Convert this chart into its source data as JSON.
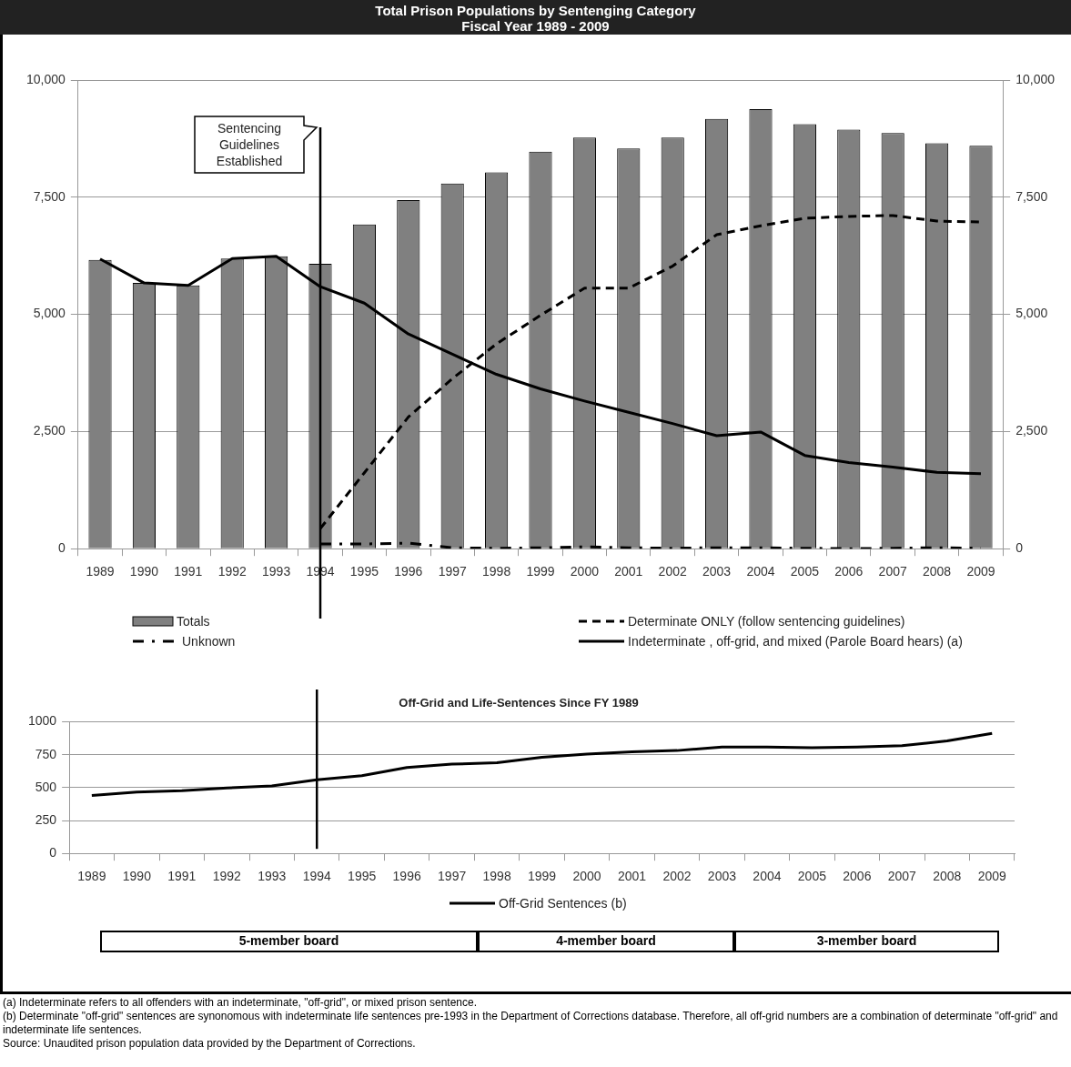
{
  "chart_data": [
    {
      "type": "bar",
      "title": "Total Prison Populations by Sentenging Category",
      "subtitle": "Fiscal Year 1989 - 2009",
      "categories": [
        "1989",
        "1990",
        "1991",
        "1992",
        "1993",
        "1994",
        "1995",
        "1996",
        "1997",
        "1998",
        "1999",
        "2000",
        "2001",
        "2002",
        "2003",
        "2004",
        "2005",
        "2006",
        "2007",
        "2008",
        "2009"
      ],
      "series": [
        {
          "name": "Totals",
          "color": "#808080",
          "values": [
            6160,
            5670,
            5620,
            6190,
            6240,
            6080,
            6920,
            7440,
            7790,
            8030,
            8470,
            8770,
            8540,
            8770,
            9170,
            9380,
            9060,
            8940,
            8870,
            8650,
            8600
          ]
        },
        {
          "name": "Determinate ONLY (follow sentencing guidelines)",
          "type": "line",
          "line_style": "dashed",
          "color": "#000000",
          "values": [
            null,
            null,
            null,
            null,
            null,
            430,
            1620,
            2810,
            3630,
            4370,
            4980,
            5560,
            5560,
            6030,
            6700,
            6890,
            7050,
            7090,
            7110,
            6990,
            6970
          ]
        },
        {
          "name": "Unknown",
          "type": "line",
          "line_style": "dashdot",
          "color": "#000000",
          "values": [
            null,
            null,
            null,
            null,
            null,
            100,
            100,
            120,
            20,
            10,
            20,
            40,
            20,
            10,
            20,
            20,
            10,
            0,
            10,
            20,
            10
          ]
        },
        {
          "name": "Indeterminate , off-grid, and mixed (Parole Board hears) (a)",
          "type": "line",
          "line_style": "solid",
          "color": "#000000",
          "values": [
            6180,
            5670,
            5620,
            6190,
            6240,
            5590,
            5240,
            4580,
            4150,
            3720,
            3410,
            3150,
            2910,
            2670,
            2410,
            2490,
            1990,
            1840,
            1740,
            1630,
            1600
          ]
        }
      ],
      "ylim": [
        0,
        10000
      ],
      "yticks": [
        0,
        {
          "value": 2500,
          "label": "2,500"
        },
        {
          "value": 5000,
          "label": "5,000"
        },
        {
          "value": 7500,
          "label": "7,500"
        },
        {
          "value": 10000,
          "label": "10,000"
        }
      ],
      "y2lim": [
        0,
        10000
      ],
      "y2ticks": [
        0,
        {
          "value": 2500,
          "label": "2,500"
        },
        {
          "value": 5000,
          "label": "5,000"
        },
        {
          "value": 7500,
          "label": "7,500"
        },
        {
          "value": 10000,
          "label": "10,000"
        }
      ],
      "ref_lines": [
        {
          "axis": "x",
          "value": "1994",
          "label": "Sentencing Guidelines Established",
          "color": "#000000"
        }
      ],
      "annotations": [
        "(a) Indeterminate refers to all offenders with an indeterminate, \"off-grid\", or mixed prison sentence.",
        "(b) Determinate \"off-grid\" sentences are synonomous with indeterminate life sentences pre-1993 in the Department of Corrections database.  Therefore, all off-grid numbers are a combination of determinate \"off-grid\" and indeterminate life sentences.",
        "Source: Unaudited prison population data provided by the Department of Corrections."
      ],
      "grid": "y",
      "legend": "bottom",
      "marker": "none"
    },
    {
      "type": "line",
      "title": "Off-Grid and Life-Sentences Since FY 1989",
      "categories": [
        "1989",
        "1990",
        "1991",
        "1992",
        "1993",
        "1994",
        "1995",
        "1996",
        "1997",
        "1998",
        "1999",
        "2000",
        "2001",
        "2002",
        "2003",
        "2004",
        "2005",
        "2006",
        "2007",
        "2008",
        "2009"
      ],
      "series": [
        {
          "name": "Off-Grid Sentences (b)",
          "color": "#000000",
          "line_style": "solid",
          "values": [
            440,
            466,
            477,
            497,
            513,
            560,
            591,
            653,
            679,
            689,
            731,
            756,
            772,
            782,
            808,
            808,
            803,
            808,
            819,
            855,
            912
          ]
        }
      ],
      "ylim": [
        0,
        1000
      ],
      "yticks": [
        0,
        250,
        500,
        750,
        1000
      ],
      "ref_lines": [
        {
          "axis": "x",
          "value": "1994",
          "color": "#000000"
        }
      ],
      "annotations": [
        "5-member board",
        "4-member board",
        "3-member board"
      ],
      "grid": "y",
      "legend": "bottom",
      "marker": "none"
    }
  ]
}
